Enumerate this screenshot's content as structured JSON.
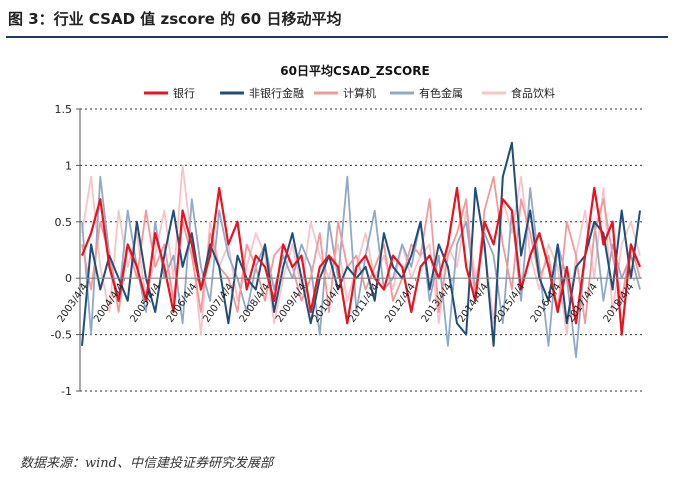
{
  "figure": {
    "title": "图 3：行业 CSAD 值 zscore 的 60 日移动平均",
    "source": "数据来源：wind、中信建投证券研究发展部"
  },
  "chart_data": {
    "type": "line",
    "title": "60日平均CSAD_ZSCORE",
    "xlabel": "",
    "ylabel": "",
    "ylim": [
      -1,
      1.5
    ],
    "yticks": [
      -1,
      -0.5,
      0,
      0.5,
      1,
      1.5
    ],
    "ytick_labels": [
      "-1",
      "-0.5",
      "0",
      "0.5",
      "1",
      "1.5"
    ],
    "grid": "horizontal dashed",
    "legend_position": "top",
    "x_tick_labels": [
      "2003/4/4",
      "2004/4/4",
      "2005/4/4",
      "2006/4/4",
      "2007/4/4",
      "2008/4/4",
      "2009/4/4",
      "2010/4/4",
      "2011/4/4",
      "2012/4/4",
      "2013/4/4",
      "2014/4/4",
      "2015/4/4",
      "2016/4/4",
      "2017/4/4",
      "2018/4/4"
    ],
    "x": [
      "2003-04",
      "2003-07",
      "2003-10",
      "2004-01",
      "2004-04",
      "2004-07",
      "2004-10",
      "2005-01",
      "2005-04",
      "2005-07",
      "2005-10",
      "2006-01",
      "2006-04",
      "2006-07",
      "2006-10",
      "2007-01",
      "2007-04",
      "2007-07",
      "2007-10",
      "2008-01",
      "2008-04",
      "2008-07",
      "2008-10",
      "2009-01",
      "2009-04",
      "2009-07",
      "2009-10",
      "2010-01",
      "2010-04",
      "2010-07",
      "2010-10",
      "2011-01",
      "2011-04",
      "2011-07",
      "2011-10",
      "2012-01",
      "2012-04",
      "2012-07",
      "2012-10",
      "2013-01",
      "2013-04",
      "2013-07",
      "2013-10",
      "2014-01",
      "2014-04",
      "2014-07",
      "2014-10",
      "2015-01",
      "2015-04",
      "2015-07",
      "2015-10",
      "2016-01",
      "2016-04",
      "2016-07",
      "2016-10",
      "2017-01",
      "2017-04",
      "2017-07",
      "2017-10",
      "2018-01",
      "2018-04",
      "2018-07"
    ],
    "series": [
      {
        "name": "银行",
        "color": "#e8131f",
        "width": 2.2,
        "values": [
          0.2,
          0.4,
          0.7,
          0.1,
          -0.2,
          0.3,
          0.1,
          -0.2,
          0.4,
          0.1,
          -0.3,
          0.6,
          0.3,
          -0.1,
          0.2,
          0.8,
          0.3,
          0.5,
          -0.1,
          0.2,
          0.1,
          -0.2,
          0.3,
          0.1,
          0.2,
          -0.3,
          0.1,
          0.2,
          0.1,
          -0.4,
          0.1,
          0.2,
          0.0,
          -0.1,
          0.2,
          0.1,
          -0.3,
          0.1,
          0.2,
          0.0,
          0.3,
          0.8,
          0.1,
          -0.2,
          0.5,
          0.3,
          0.7,
          0.6,
          -0.1,
          0.2,
          0.4,
          0.1,
          -0.3,
          0.1,
          -0.4,
          0.2,
          0.8,
          0.3,
          0.5,
          -0.5,
          0.3,
          0.1
        ]
      },
      {
        "name": "非银行金融",
        "color": "#1f4e79",
        "width": 2.0,
        "values": [
          -0.6,
          0.3,
          -0.1,
          0.2,
          0.0,
          -0.2,
          0.5,
          0.0,
          -0.3,
          0.2,
          0.6,
          0.1,
          0.4,
          -0.1,
          0.3,
          0.1,
          -0.4,
          0.2,
          0.0,
          -0.1,
          0.3,
          -0.3,
          0.1,
          0.4,
          0.0,
          -0.4,
          0.0,
          0.2,
          -0.1,
          0.1,
          0.0,
          0.1,
          -0.2,
          0.4,
          0.1,
          0.0,
          0.2,
          0.5,
          -0.1,
          0.3,
          0.1,
          -0.4,
          -0.5,
          0.8,
          0.3,
          -0.6,
          0.9,
          1.2,
          0.2,
          0.6,
          0.0,
          -0.2,
          0.3,
          -0.4,
          0.1,
          0.2,
          0.5,
          0.4,
          -0.1,
          0.6,
          0.0,
          0.6
        ]
      },
      {
        "name": "计算机",
        "color": "#f2999a",
        "width": 1.8,
        "values": [
          0.3,
          -0.1,
          0.5,
          0.2,
          -0.3,
          0.3,
          0.0,
          0.6,
          0.1,
          0.3,
          -0.2,
          0.5,
          0.2,
          -0.3,
          0.4,
          0.1,
          0.0,
          -0.3,
          0.3,
          0.1,
          -0.2,
          0.2,
          0.3,
          0.1,
          -0.2,
          0.0,
          0.4,
          -0.3,
          0.5,
          0.1,
          0.2,
          -0.1,
          0.1,
          0.3,
          -0.2,
          0.0,
          0.3,
          0.2,
          0.7,
          -0.3,
          0.2,
          0.4,
          0.7,
          -0.2,
          0.6,
          0.9,
          0.3,
          -0.1,
          0.7,
          0.4,
          0.0,
          0.2,
          -0.3,
          0.5,
          0.2,
          -0.4,
          0.4,
          0.7,
          0.2,
          -0.2,
          0.3,
          0.0
        ]
      },
      {
        "name": "有色金属",
        "color": "#8fa9c7",
        "width": 1.8,
        "values": [
          0.5,
          -0.5,
          0.9,
          0.2,
          -0.2,
          0.6,
          0.1,
          -0.3,
          0.5,
          0.0,
          0.2,
          -0.4,
          0.7,
          0.1,
          -0.2,
          0.6,
          0.2,
          0.0,
          -0.3,
          0.1,
          0.3,
          -0.1,
          0.2,
          0.0,
          0.3,
          0.1,
          -0.5,
          0.5,
          0.0,
          0.9,
          -0.3,
          0.2,
          0.6,
          -0.1,
          0.0,
          0.3,
          0.1,
          0.5,
          -0.2,
          0.2,
          -0.6,
          0.3,
          0.5,
          -0.1,
          0.4,
          0.2,
          -0.4,
          0.6,
          -0.2,
          0.8,
          0.1,
          -0.6,
          0.3,
          0.0,
          -0.7,
          0.2,
          0.5,
          -0.2,
          0.3,
          0.0,
          0.2,
          -0.1
        ]
      },
      {
        "name": "食品饮料",
        "color": "#f8c4c9",
        "width": 1.8,
        "values": [
          0.4,
          0.9,
          0.1,
          -0.3,
          0.6,
          0.1,
          0.4,
          -0.2,
          0.2,
          0.6,
          0.0,
          1.0,
          0.3,
          -0.5,
          0.5,
          0.1,
          0.3,
          -0.2,
          0.1,
          0.4,
          0.2,
          -0.4,
          0.0,
          0.3,
          -0.1,
          0.5,
          0.2,
          0.0,
          0.3,
          -0.2,
          0.1,
          0.4,
          0.0,
          0.2,
          -0.1,
          0.3,
          0.0,
          0.2,
          0.3,
          -0.4,
          0.3,
          0.1,
          0.6,
          0.0,
          0.3,
          -0.4,
          0.7,
          0.4,
          0.9,
          0.2,
          -0.1,
          0.3,
          0.1,
          -0.5,
          0.2,
          0.6,
          0.0,
          0.8,
          -0.3,
          0.3,
          0.5,
          0.2
        ]
      }
    ]
  }
}
